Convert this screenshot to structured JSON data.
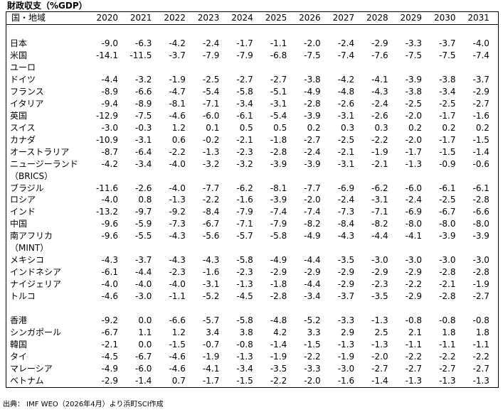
{
  "header": {
    "title": "財政収支（%GDP）",
    "label_heading": "国・地域",
    "years": [
      "2020",
      "2021",
      "2022",
      "2023",
      "2024",
      "2025",
      "2026",
      "2027",
      "2028",
      "2029",
      "2030",
      "2031"
    ]
  },
  "sections": [
    {
      "rows": [
        {
          "label": "日本",
          "values": [
            "-9.0",
            "-6.3",
            "-4.2",
            "-2.4",
            "-1.7",
            "-1.1",
            "-2.0",
            "-2.4",
            "-2.9",
            "-3.3",
            "-3.7",
            "-4.0"
          ]
        },
        {
          "label": "米国",
          "values": [
            "-14.1",
            "-11.5",
            "-3.7",
            "-7.9",
            "-7.9",
            "-6.8",
            "-7.5",
            "-7.4",
            "-7.6",
            "-7.5",
            "-7.5",
            "-7.4"
          ]
        },
        {
          "label": "ユーロ"
        },
        {
          "label": "ドイツ",
          "values": [
            "-4.4",
            "-3.2",
            "-1.9",
            "-2.5",
            "-2.7",
            "-2.7",
            "-3.8",
            "-4.2",
            "-4.1",
            "-3.9",
            "-3.8",
            "-3.7"
          ]
        },
        {
          "label": "フランス",
          "values": [
            "-8.9",
            "-6.6",
            "-4.7",
            "-5.4",
            "-5.8",
            "-5.1",
            "-4.9",
            "-4.8",
            "-4.3",
            "-3.8",
            "-3.4",
            "-2.9"
          ]
        },
        {
          "label": "イタリア",
          "values": [
            "-9.4",
            "-8.9",
            "-8.1",
            "-7.1",
            "-3.4",
            "-3.1",
            "-2.8",
            "-2.6",
            "-2.4",
            "-2.5",
            "-2.5",
            "-2.7"
          ]
        },
        {
          "label": "英国",
          "values": [
            "-12.9",
            "-7.5",
            "-4.6",
            "-6.0",
            "-6.1",
            "-5.4",
            "-3.9",
            "-3.1",
            "-2.6",
            "-2.0",
            "-1.7",
            "-1.6"
          ]
        },
        {
          "label": "スイス",
          "values": [
            "-3.0",
            "-0.3",
            "1.2",
            "0.1",
            "0.5",
            "0.5",
            "0.2",
            "0.3",
            "0.3",
            "0.2",
            "0.2",
            "0.2"
          ]
        },
        {
          "label": "カナダ",
          "values": [
            "-10.9",
            "-3.1",
            "0.6",
            "-0.2",
            "-2.1",
            "-1.8",
            "-2.7",
            "-2.5",
            "-2.2",
            "-2.0",
            "-1.7",
            "-1.5"
          ]
        },
        {
          "label": "オーストラリア",
          "values": [
            "-8.7",
            "-6.4",
            "-2.2",
            "-1.3",
            "-2.3",
            "-2.8",
            "-2.4",
            "-2.1",
            "-1.9",
            "-1.7",
            "-1.5",
            "-1.4"
          ]
        },
        {
          "label": "ニュージーランド",
          "values": [
            "-4.2",
            "-3.4",
            "-4.0",
            "-3.2",
            "-3.2",
            "-3.9",
            "-3.9",
            "-3.1",
            "-2.1",
            "-1.3",
            "-0.9",
            "-0.6"
          ]
        },
        {
          "label": "（BRICS）"
        },
        {
          "label": "ブラジル",
          "values": [
            "-11.6",
            "-2.6",
            "-4.0",
            "-7.7",
            "-6.2",
            "-8.1",
            "-7.7",
            "-6.9",
            "-6.2",
            "-6.0",
            "-6.1",
            "-6.1"
          ]
        },
        {
          "label": "ロシア",
          "values": [
            "-4.0",
            "0.8",
            "-1.3",
            "-2.2",
            "-1.6",
            "-3.9",
            "-2.0",
            "-2.4",
            "-3.1",
            "-2.4",
            "-2.5",
            "-2.8"
          ]
        },
        {
          "label": "インド",
          "values": [
            "-13.2",
            "-9.7",
            "-9.2",
            "-8.4",
            "-7.9",
            "-7.4",
            "-7.4",
            "-7.3",
            "-7.1",
            "-6.9",
            "-6.7",
            "-6.6"
          ]
        },
        {
          "label": "中国",
          "values": [
            "-9.6",
            "-5.9",
            "-7.3",
            "-6.7",
            "-7.1",
            "-7.9",
            "-8.2",
            "-8.4",
            "-8.2",
            "-8.0",
            "-8.0",
            "-8.0"
          ]
        },
        {
          "label": "南アフリカ",
          "values": [
            "-9.6",
            "-5.5",
            "-4.3",
            "-5.6",
            "-5.7",
            "-5.8",
            "-4.9",
            "-4.3",
            "-4.4",
            "-4.1",
            "-3.9",
            "-3.9"
          ]
        },
        {
          "label": "（MINT）"
        },
        {
          "label": "メキシコ",
          "values": [
            "-4.3",
            "-3.7",
            "-4.3",
            "-4.3",
            "-5.8",
            "-4.9",
            "-4.4",
            "-3.5",
            "-3.0",
            "-3.0",
            "-3.0",
            "-3.0"
          ]
        },
        {
          "label": "インドネシア",
          "values": [
            "-6.1",
            "-4.4",
            "-2.3",
            "-1.6",
            "-2.3",
            "-2.9",
            "-2.9",
            "-2.9",
            "-2.9",
            "-2.9",
            "-2.8",
            "-2.8"
          ]
        },
        {
          "label": "ナイジェリア",
          "values": [
            "-4.0",
            "-4.0",
            "-4.0",
            "-3.1",
            "-1.3",
            "-1.8",
            "-4.4",
            "-2.9",
            "-2.3",
            "-2.2",
            "-2.1",
            "-1.9"
          ]
        },
        {
          "label": "トルコ",
          "values": [
            "-4.6",
            "-3.0",
            "-1.1",
            "-5.2",
            "-4.5",
            "-2.8",
            "-3.4",
            "-3.7",
            "-3.5",
            "-2.9",
            "-2.8",
            "-2.7"
          ]
        }
      ]
    },
    {
      "rows": [
        {
          "label": "香港",
          "values": [
            "-9.2",
            "0.0",
            "-6.6",
            "-5.7",
            "-5.8",
            "-4.8",
            "-5.2",
            "-3.3",
            "-1.3",
            "-0.8",
            "-0.8",
            "-0.8"
          ]
        },
        {
          "label": "シンガポール",
          "values": [
            "-6.7",
            "1.1",
            "1.2",
            "3.4",
            "3.8",
            "4.2",
            "3.3",
            "2.9",
            "2.5",
            "2.1",
            "1.8",
            "1.8"
          ]
        },
        {
          "label": "韓国",
          "values": [
            "-2.1",
            "0.0",
            "-1.5",
            "-0.7",
            "-0.8",
            "-1.4",
            "-1.5",
            "-1.3",
            "-1.3",
            "-1.1",
            "-1.1",
            "-1.1"
          ]
        },
        {
          "label": "タイ",
          "values": [
            "-4.5",
            "-6.7",
            "-4.6",
            "-1.9",
            "-1.3",
            "-1.9",
            "-2.2",
            "-1.9",
            "-2.0",
            "-2.2",
            "-2.2",
            "-2.2"
          ]
        },
        {
          "label": "マレーシア",
          "values": [
            "-4.9",
            "-6.0",
            "-4.6",
            "-4.1",
            "-3.4",
            "-3.5",
            "-3.3",
            "-3.0",
            "-2.7",
            "-2.7",
            "-2.7",
            "-2.7"
          ]
        },
        {
          "label": "ベトナム",
          "values": [
            "-2.9",
            "-1.4",
            "0.7",
            "-1.7",
            "-1.5",
            "-2.2",
            "-2.0",
            "-1.6",
            "-1.4",
            "-1.3",
            "-1.3",
            "-1.3"
          ]
        }
      ]
    }
  ],
  "footer": {
    "source": "出典： IMF WEO（2026年4月）より浜町SCI作成"
  }
}
